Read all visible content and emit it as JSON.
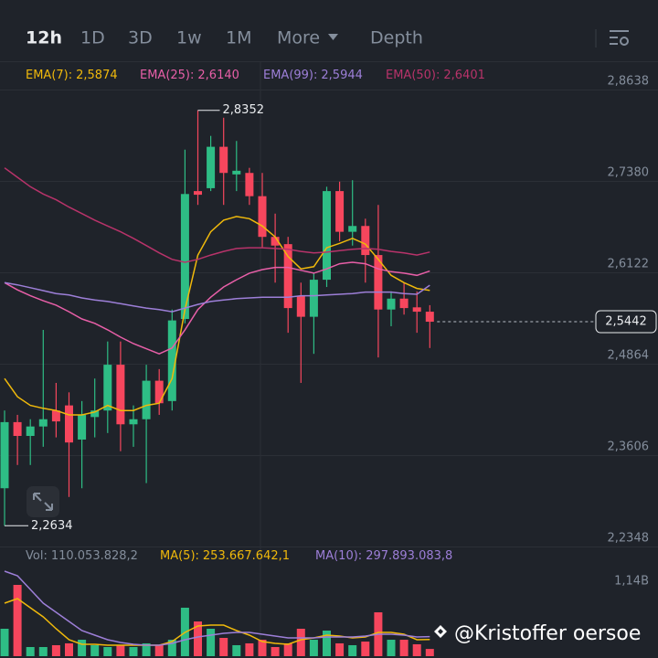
{
  "toolbar": {
    "tabs": [
      "12h",
      "1D",
      "3D",
      "1w",
      "1M",
      "More",
      "Depth"
    ]
  },
  "chart_data": {
    "type": "candlestick",
    "up_color": "#2ebd85",
    "down_color": "#f6465d",
    "ylim": [
      2.2348,
      2.9015
    ],
    "yticks": [
      {
        "value": 2.8638,
        "label": "2,8638"
      },
      {
        "value": 2.738,
        "label": "2,7380"
      },
      {
        "value": 2.6122,
        "label": "2,6122"
      },
      {
        "value": 2.4864,
        "label": "2,4864"
      },
      {
        "value": 2.3606,
        "label": "2,3606"
      },
      {
        "value": 2.2348,
        "label": "2,2348"
      }
    ],
    "grid": true,
    "open": [
      2.315,
      2.406,
      2.387,
      2.4,
      2.422,
      2.429,
      2.382,
      2.413,
      2.422,
      2.485,
      2.403,
      2.41,
      2.463,
      2.435,
      2.548,
      2.724,
      2.728,
      2.785,
      2.747,
      2.749,
      2.717,
      2.661,
      2.651,
      2.58,
      2.551,
      2.602,
      2.724,
      2.668,
      2.676,
      2.636,
      2.561,
      2.576,
      2.564,
      2.558
    ],
    "high": [
      2.422,
      2.416,
      2.41,
      2.533,
      2.46,
      2.447,
      2.435,
      2.466,
      2.517,
      2.517,
      2.429,
      2.485,
      2.479,
      2.561,
      2.781,
      2.8352,
      2.8,
      2.825,
      2.793,
      2.756,
      2.749,
      2.693,
      2.661,
      2.598,
      2.611,
      2.73,
      2.737,
      2.739,
      2.686,
      2.705,
      2.586,
      2.598,
      2.586,
      2.567
    ],
    "low": [
      2.2634,
      2.347,
      2.347,
      2.372,
      2.385,
      2.303,
      2.315,
      2.385,
      2.391,
      2.366,
      2.372,
      2.322,
      2.416,
      2.422,
      2.542,
      2.705,
      2.724,
      2.705,
      2.724,
      2.705,
      2.646,
      2.598,
      2.529,
      2.46,
      2.5,
      2.592,
      2.655,
      2.649,
      2.598,
      2.495,
      2.538,
      2.554,
      2.529,
      2.508
    ],
    "close": [
      2.406,
      2.387,
      2.4,
      2.41,
      2.407,
      2.378,
      2.416,
      2.422,
      2.485,
      2.403,
      2.41,
      2.463,
      2.432,
      2.546,
      2.72,
      2.719,
      2.785,
      2.749,
      2.752,
      2.717,
      2.661,
      2.649,
      2.563,
      2.551,
      2.602,
      2.724,
      2.668,
      2.676,
      2.636,
      2.561,
      2.576,
      2.563,
      2.558,
      2.5442
    ],
    "annotations": {
      "high_label": "2,8352",
      "low_label": "2,2634",
      "last_label": "2,5442"
    },
    "series": [
      {
        "name": "EMA(7):",
        "legend_value": "2,5874",
        "color": "#f0b90b",
        "values": [
          2.466,
          2.441,
          2.429,
          2.425,
          2.422,
          2.416,
          2.416,
          2.42,
          2.429,
          2.422,
          2.422,
          2.429,
          2.432,
          2.466,
          2.561,
          2.636,
          2.668,
          2.684,
          2.689,
          2.686,
          2.676,
          2.661,
          2.634,
          2.617,
          2.62,
          2.646,
          2.652,
          2.659,
          2.651,
          2.63,
          2.608,
          2.598,
          2.59,
          2.5874
        ]
      },
      {
        "name": "EMA(25):",
        "legend_value": "2,6140",
        "color": "#e85fa8",
        "values": [
          2.598,
          2.588,
          2.58,
          2.573,
          2.567,
          2.558,
          2.548,
          2.542,
          2.533,
          2.523,
          2.514,
          2.507,
          2.5,
          2.508,
          2.533,
          2.561,
          2.578,
          2.592,
          2.602,
          2.611,
          2.616,
          2.619,
          2.619,
          2.615,
          2.611,
          2.617,
          2.624,
          2.626,
          2.624,
          2.617,
          2.613,
          2.611,
          2.608,
          2.614
        ]
      },
      {
        "name": "EMA(99):",
        "legend_value": "2,5944",
        "color": "#9d7fd8",
        "values": [
          2.598,
          2.595,
          2.591,
          2.587,
          2.583,
          2.581,
          2.577,
          2.574,
          2.572,
          2.569,
          2.566,
          2.563,
          2.561,
          2.558,
          2.563,
          2.568,
          2.572,
          2.574,
          2.576,
          2.577,
          2.578,
          2.578,
          2.578,
          2.58,
          2.58,
          2.581,
          2.582,
          2.583,
          2.585,
          2.585,
          2.585,
          2.583,
          2.582,
          2.5944
        ]
      },
      {
        "name": "EMA(50):",
        "legend_value": "2,6401",
        "color": "#b8336a",
        "values": [
          2.756,
          2.743,
          2.73,
          2.72,
          2.712,
          2.702,
          2.693,
          2.684,
          2.676,
          2.668,
          2.659,
          2.649,
          2.639,
          2.63,
          2.626,
          2.63,
          2.636,
          2.641,
          2.645,
          2.646,
          2.646,
          2.645,
          2.644,
          2.641,
          2.639,
          2.64,
          2.642,
          2.644,
          2.645,
          2.644,
          2.641,
          2.639,
          2.636,
          2.6401
        ]
      }
    ],
    "volume": {
      "name": "Vol:",
      "legend_value": "110.053.828,2",
      "ylim": [
        0,
        1640000000
      ],
      "yticks": [
        {
          "value": 1140000000,
          "label": "1,14B"
        }
      ],
      "values": [
        417000000,
        1084000000,
        139000000,
        139000000,
        167000000,
        195000000,
        250000000,
        167000000,
        139000000,
        167000000,
        139000000,
        195000000,
        167000000,
        250000000,
        737000000,
        528000000,
        417000000,
        278000000,
        167000000,
        195000000,
        250000000,
        139000000,
        195000000,
        417000000,
        250000000,
        389000000,
        195000000,
        167000000,
        222000000,
        667000000,
        250000000,
        250000000,
        181000000,
        110053828.2
      ],
      "series": [
        {
          "name": "MA(5):",
          "legend_value": "253.667.642,1",
          "color": "#f0b90b",
          "values": [
            806000000,
            876000000,
            737000000,
            598000000,
            417000000,
            250000000,
            181000000,
            181000000,
            167000000,
            167000000,
            167000000,
            167000000,
            167000000,
            222000000,
            361000000,
            459000000,
            473000000,
            473000000,
            389000000,
            320000000,
            222000000,
            195000000,
            181000000,
            250000000,
            278000000,
            320000000,
            306000000,
            278000000,
            292000000,
            361000000,
            361000000,
            334000000,
            250000000,
            253667642.1
          ]
        },
        {
          "name": "MA(10):",
          "legend_value": "297.893.083,8",
          "color": "#9d7fd8",
          "values": [
            1293000000,
            1223000000,
            1015000000,
            806000000,
            667000000,
            528000000,
            389000000,
            320000000,
            250000000,
            209000000,
            181000000,
            167000000,
            167000000,
            195000000,
            250000000,
            292000000,
            320000000,
            348000000,
            361000000,
            361000000,
            334000000,
            306000000,
            278000000,
            278000000,
            278000000,
            292000000,
            292000000,
            292000000,
            306000000,
            334000000,
            334000000,
            320000000,
            292000000,
            297893083.8
          ]
        }
      ]
    }
  },
  "watermark": "@Kristoffer oersoe"
}
